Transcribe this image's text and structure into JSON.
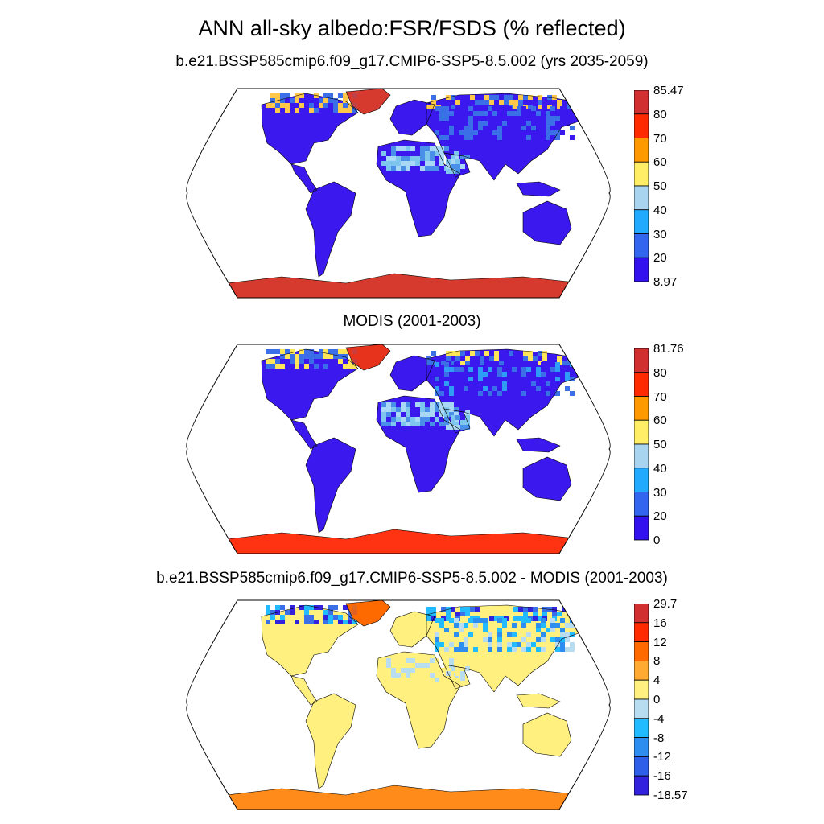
{
  "figure": {
    "title": "ANN all-sky albedo:FSR/FSDS (% reflected)"
  },
  "panels": [
    {
      "title": "b.e21.BSSP585cmip6.f09_g17.CMIP6-SSP5-8.5.002 (yrs 2035-2059)",
      "colorbar": {
        "labels": [
          "85.47",
          "80",
          "70",
          "60",
          "50",
          "40",
          "30",
          "20",
          "8.97"
        ],
        "colors": [
          "#d03030",
          "#ff2a00",
          "#ff9900",
          "#ffee66",
          "#a8d4f0",
          "#22aaff",
          "#3366ee",
          "#3310ee"
        ]
      },
      "field": {
        "land_color": "#3a18ee",
        "greenland_color": "#d63a2e",
        "antarctica_color": "#d63a2e",
        "arctic_colors": [
          "#ffc84a",
          "#3b6fe8"
        ],
        "sahara_colors": [
          "#7fc6ef",
          "#a8d8f5",
          "#4a8fe8"
        ],
        "boreal_colors": [
          "#3b6fe8",
          "#3a18ee"
        ]
      }
    },
    {
      "title": "MODIS (2001-2003)",
      "colorbar": {
        "labels": [
          "81.76",
          "80",
          "70",
          "60",
          "50",
          "40",
          "30",
          "20",
          "0"
        ],
        "colors": [
          "#d03030",
          "#ff2a00",
          "#ff9900",
          "#ffee66",
          "#a8d4f0",
          "#22aaff",
          "#3366ee",
          "#3310ee"
        ]
      },
      "field": {
        "land_color": "#3a18ee",
        "greenland_color": "#e8341c",
        "antarctica_color": "#ff3311",
        "arctic_colors": [
          "#ffe55a",
          "#3b6fe8"
        ],
        "sahara_colors": [
          "#7fc6ef",
          "#a8d8f5",
          "#4a8fe8"
        ],
        "boreal_colors": [
          "#3b6fe8",
          "#2f9cf5",
          "#3a18ee"
        ]
      }
    },
    {
      "title": "b.e21.BSSP585cmip6.f09_g17.CMIP6-SSP5-8.5.002 - MODIS (2001-2003)",
      "colorbar": {
        "labels": [
          "29.7",
          "16",
          "12",
          "8",
          "4",
          "0",
          "-4",
          "-8",
          "-12",
          "-16",
          "-18.57"
        ],
        "colors": [
          "#d03030",
          "#ff2a00",
          "#ff6a00",
          "#ffaa33",
          "#fff080",
          "#b8dcf0",
          "#22bbff",
          "#2d8ef0",
          "#2d5fe8",
          "#3322dd"
        ]
      },
      "field": {
        "land_color": "#fff080",
        "greenland_color": "#ff6a00",
        "antarctica_color": "#ff8c1a",
        "arctic_colors": [
          "#3b6fe8",
          "#3322dd",
          "#22bbff"
        ],
        "sahara_colors": [
          "#fff080",
          "#b8dcf0"
        ],
        "boreal_colors": [
          "#22bbff",
          "#b8dcf0",
          "#2d8ef0"
        ]
      }
    }
  ]
}
